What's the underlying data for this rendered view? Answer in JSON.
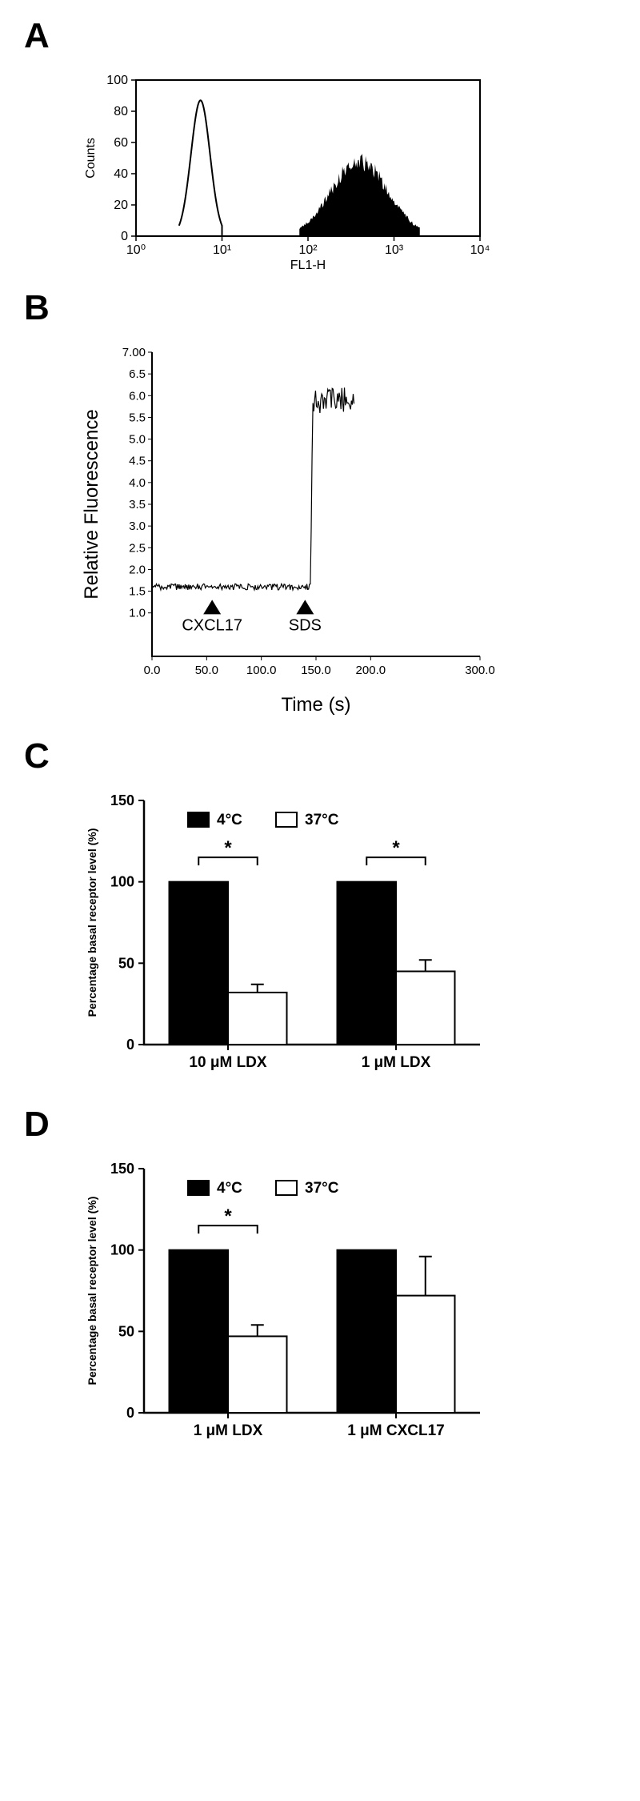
{
  "panelA": {
    "label": "A",
    "type": "histogram",
    "xlabel": "FL1-H",
    "ylabel": "Counts",
    "xlim": [
      1,
      10000
    ],
    "ylim": [
      0,
      100
    ],
    "yticks": [
      0,
      20,
      40,
      60,
      80,
      100
    ],
    "xticks_log": [
      1,
      10,
      100,
      1000,
      10000
    ],
    "xticks_labels": [
      "10⁰",
      "10¹",
      "10²",
      "10³",
      "10⁴"
    ],
    "background_color": "#ffffff",
    "axis_color": "#000000",
    "font_size": 16,
    "peak1": {
      "fill": "none",
      "stroke": "#000000",
      "center_log": 0.75,
      "height": 87,
      "width": 0.5
    },
    "peak2": {
      "fill": "#000000",
      "center_log": 2.6,
      "height": 48,
      "width": 1.4
    }
  },
  "panelB": {
    "label": "B",
    "type": "line",
    "xlabel": "Time (s)",
    "ylabel": "Relative Fluorescence",
    "xlim": [
      0,
      300
    ],
    "ylim": [
      0,
      7
    ],
    "xticks": [
      0,
      50,
      100,
      150,
      200,
      300
    ],
    "yticks": [
      1.0,
      1.5,
      2.0,
      2.5,
      3.0,
      3.5,
      4.0,
      4.5,
      5.0,
      5.5,
      6.0,
      6.5,
      7.0
    ],
    "background_color": "#ffffff",
    "axis_color": "#000000",
    "line_color": "#000000",
    "font_size": 18,
    "label_fontsize": 24,
    "baseline": 1.6,
    "noise_amp": 0.07,
    "jump_time": 145,
    "jump_level": 5.9,
    "jump_noise": 0.3,
    "end_time": 185,
    "markers": [
      {
        "label": "CXCL17",
        "x": 55,
        "y_arrow": 1.3
      },
      {
        "label": "SDS",
        "x": 140,
        "y_arrow": 1.3
      }
    ]
  },
  "panelC": {
    "label": "C",
    "type": "bar",
    "ylabel": "Percentage basal receptor level (%)",
    "ylim": [
      0,
      150
    ],
    "yticks": [
      0,
      50,
      100,
      150
    ],
    "categories": [
      "10 μM LDX",
      "1 μM LDX"
    ],
    "legend": [
      {
        "label": "4°C",
        "color": "#000000"
      },
      {
        "label": "37°C",
        "color": "#ffffff"
      }
    ],
    "groups": [
      {
        "black": 100,
        "white": 32,
        "white_err": 5,
        "sig": "*"
      },
      {
        "black": 100,
        "white": 45,
        "white_err": 7,
        "sig": "*"
      }
    ],
    "background_color": "#ffffff",
    "axis_color": "#000000",
    "bar_stroke": "#000000",
    "font_size": 16,
    "label_fontsize": 14,
    "bar_width": 0.35
  },
  "panelD": {
    "label": "D",
    "type": "bar",
    "ylabel": "Percentage basal receptor level (%)",
    "ylim": [
      0,
      150
    ],
    "yticks": [
      0,
      50,
      100,
      150
    ],
    "categories": [
      "1 μM LDX",
      "1 μM CXCL17"
    ],
    "legend": [
      {
        "label": "4°C",
        "color": "#000000"
      },
      {
        "label": "37°C",
        "color": "#ffffff"
      }
    ],
    "groups": [
      {
        "black": 100,
        "white": 47,
        "white_err": 7,
        "sig": "*"
      },
      {
        "black": 100,
        "white": 72,
        "white_err": 24,
        "sig": ""
      }
    ],
    "background_color": "#ffffff",
    "axis_color": "#000000",
    "bar_stroke": "#000000",
    "font_size": 16,
    "label_fontsize": 14,
    "bar_width": 0.35
  }
}
